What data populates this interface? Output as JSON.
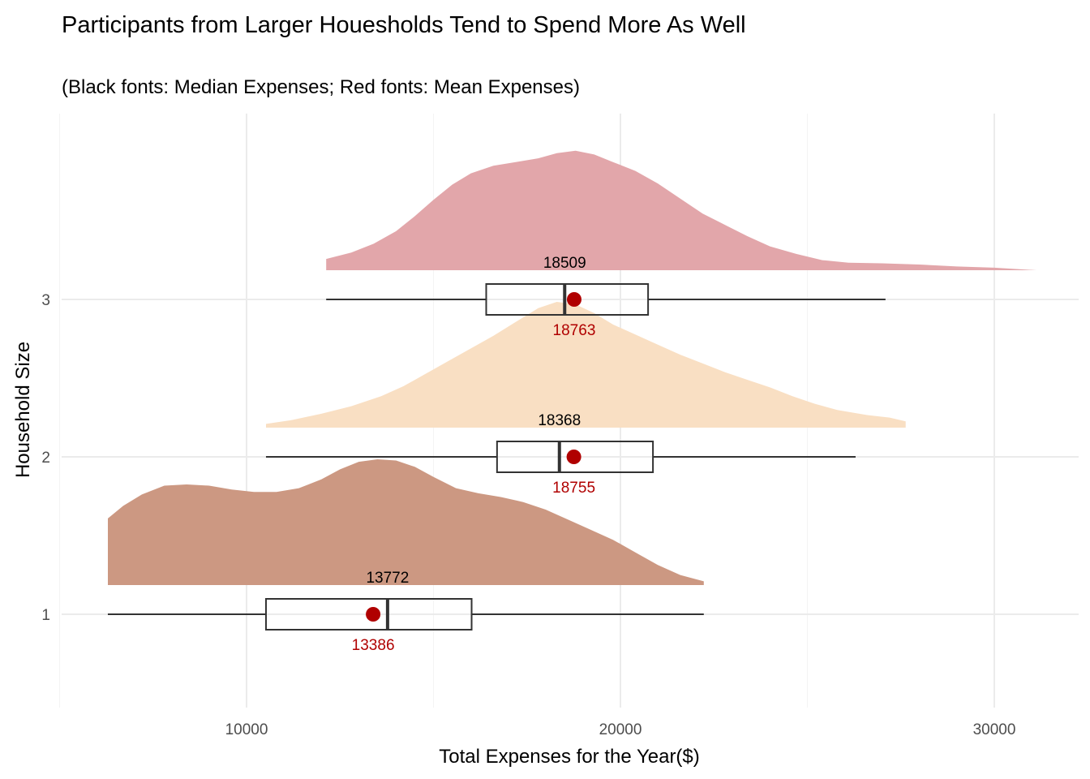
{
  "chart_data": {
    "type": "raincloud",
    "title": "Participants from Larger Houesholds Tend to Spend More As Well",
    "subtitle": "(Black fonts: Median Expenses; Red fonts: Mean Expenses)",
    "xlabel": "Total Expenses for the Year($)",
    "ylabel": "Household Size",
    "xlim": [
      4700,
      32300
    ],
    "x_ticks": [
      10000,
      20000,
      30000
    ],
    "x_minor_ticks": [
      5000,
      15000,
      25000
    ],
    "y_categories": [
      "1",
      "2",
      "3"
    ],
    "grid": true,
    "legend": "none",
    "mean_color": "#b00000",
    "median_label_color": "#000000",
    "mean_label_color": "#b00000",
    "groups": [
      {
        "category": "1",
        "fill": "#cc9882",
        "median": 13772,
        "mean": 13386,
        "q1": 10520,
        "q3": 16020,
        "whisker_low": 6290,
        "whisker_high": 22230,
        "density": [
          [
            6290,
            0.53
          ],
          [
            6700,
            0.63
          ],
          [
            7200,
            0.72
          ],
          [
            7800,
            0.79
          ],
          [
            8400,
            0.8
          ],
          [
            9000,
            0.79
          ],
          [
            9600,
            0.76
          ],
          [
            10200,
            0.74
          ],
          [
            10800,
            0.74
          ],
          [
            11400,
            0.77
          ],
          [
            12000,
            0.84
          ],
          [
            12500,
            0.92
          ],
          [
            13000,
            0.98
          ],
          [
            13500,
            1.0
          ],
          [
            14000,
            0.99
          ],
          [
            14500,
            0.94
          ],
          [
            15000,
            0.86
          ],
          [
            15600,
            0.77
          ],
          [
            16200,
            0.73
          ],
          [
            16800,
            0.7
          ],
          [
            17400,
            0.66
          ],
          [
            18000,
            0.6
          ],
          [
            18600,
            0.52
          ],
          [
            19200,
            0.44
          ],
          [
            19800,
            0.36
          ],
          [
            20400,
            0.26
          ],
          [
            21000,
            0.16
          ],
          [
            21600,
            0.08
          ],
          [
            22230,
            0.03
          ]
        ]
      },
      {
        "category": "2",
        "fill": "#f9dfc3",
        "median": 18368,
        "mean": 18755,
        "q1": 16700,
        "q3": 20870,
        "whisker_low": 10520,
        "whisker_high": 26290,
        "density": [
          [
            10520,
            0.03
          ],
          [
            11200,
            0.06
          ],
          [
            12000,
            0.11
          ],
          [
            12800,
            0.17
          ],
          [
            13600,
            0.25
          ],
          [
            14200,
            0.33
          ],
          [
            14800,
            0.43
          ],
          [
            15400,
            0.53
          ],
          [
            16000,
            0.63
          ],
          [
            16600,
            0.73
          ],
          [
            17200,
            0.84
          ],
          [
            17800,
            0.95
          ],
          [
            18300,
            1.0
          ],
          [
            18800,
            0.98
          ],
          [
            19300,
            0.91
          ],
          [
            19800,
            0.82
          ],
          [
            20400,
            0.74
          ],
          [
            21000,
            0.66
          ],
          [
            21600,
            0.58
          ],
          [
            22200,
            0.51
          ],
          [
            22800,
            0.44
          ],
          [
            23400,
            0.38
          ],
          [
            24000,
            0.32
          ],
          [
            24600,
            0.25
          ],
          [
            25200,
            0.19
          ],
          [
            25800,
            0.14
          ],
          [
            26600,
            0.1
          ],
          [
            27200,
            0.08
          ],
          [
            27630,
            0.05
          ]
        ]
      },
      {
        "category": "3",
        "fill": "#e2a6aa",
        "median": 18509,
        "mean": 18763,
        "q1": 16410,
        "q3": 20740,
        "whisker_low": 12130,
        "whisker_high": 27090,
        "density": [
          [
            12130,
            0.09
          ],
          [
            12800,
            0.14
          ],
          [
            13400,
            0.21
          ],
          [
            14000,
            0.31
          ],
          [
            14500,
            0.43
          ],
          [
            15000,
            0.56
          ],
          [
            15500,
            0.68
          ],
          [
            16000,
            0.77
          ],
          [
            16600,
            0.83
          ],
          [
            17200,
            0.86
          ],
          [
            17800,
            0.89
          ],
          [
            18300,
            0.93
          ],
          [
            18800,
            0.95
          ],
          [
            19300,
            0.92
          ],
          [
            19800,
            0.86
          ],
          [
            20400,
            0.79
          ],
          [
            21000,
            0.69
          ],
          [
            21600,
            0.57
          ],
          [
            22200,
            0.45
          ],
          [
            22800,
            0.36
          ],
          [
            23400,
            0.27
          ],
          [
            24000,
            0.19
          ],
          [
            24700,
            0.13
          ],
          [
            25400,
            0.08
          ],
          [
            26100,
            0.06
          ],
          [
            27000,
            0.055
          ],
          [
            28000,
            0.045
          ],
          [
            29000,
            0.03
          ],
          [
            30000,
            0.02
          ],
          [
            31130,
            0.0
          ]
        ]
      }
    ]
  }
}
